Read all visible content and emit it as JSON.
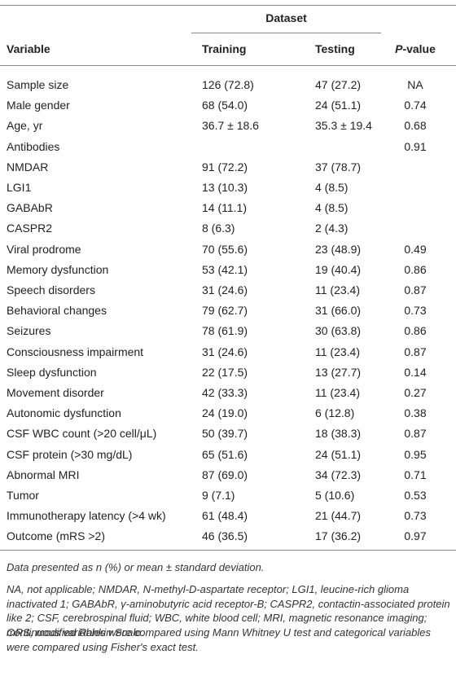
{
  "header": {
    "group": "Dataset",
    "columns": [
      "Variable",
      "Training",
      "Testing",
      "P-value"
    ]
  },
  "table": {
    "rows": [
      [
        "Sample size",
        "126 (72.8)",
        "47 (27.2)",
        "NA"
      ],
      [
        "Male gender",
        "68 (54.0)",
        "24 (51.1)",
        "0.74"
      ],
      [
        "Age, yr",
        "36.7 ± 18.6",
        "35.3 ± 19.4",
        "0.68"
      ],
      [
        "Antibodies",
        null,
        null,
        "0.91"
      ],
      [
        "NMDAR",
        "91 (72.2)",
        "37 (78.7)",
        null
      ],
      [
        "LGI1",
        "13 (10.3)",
        "4 (8.5)",
        null
      ],
      [
        "GABAbR",
        "14 (11.1)",
        "4 (8.5)",
        null
      ],
      [
        "CASPR2",
        "8 (6.3)",
        "2 (4.3)",
        null
      ],
      [
        "Viral prodrome",
        "70 (55.6)",
        "23 (48.9)",
        "0.49"
      ],
      [
        "Memory dysfunction",
        "53 (42.1)",
        "19 (40.4)",
        "0.86"
      ],
      [
        "Speech disorders",
        "31 (24.6)",
        "11 (23.4)",
        "0.87"
      ],
      [
        "Behavioral changes",
        "79 (62.7)",
        "31 (66.0)",
        "0.73"
      ],
      [
        "Seizures",
        "78 (61.9)",
        "30 (63.8)",
        "0.86"
      ],
      [
        "Consciousness impairment",
        "31 (24.6)",
        "11 (23.4)",
        "0.87"
      ],
      [
        "Sleep dysfunction",
        "22 (17.5)",
        "13 (27.7)",
        "0.14"
      ],
      [
        "Movement disorder",
        "42 (33.3)",
        "11 (23.4)",
        "0.27"
      ],
      [
        "Autonomic dysfunction",
        "24 (19.0)",
        "6 (12.8)",
        "0.38"
      ],
      [
        "CSF WBC count (>20 cell/μL)",
        "50 (39.7)",
        "18 (38.3)",
        "0.87"
      ],
      [
        "CSF protein (>30 mg/dL)",
        "65 (51.6)",
        "24 (51.1)",
        "0.95"
      ],
      [
        "Abnormal MRI",
        "87 (69.0)",
        "34 (72.3)",
        "0.71"
      ],
      [
        "Tumor",
        "9 (7.1)",
        "5 (10.6)",
        "0.53"
      ],
      [
        "Immunotherapy latency (>4 wk)",
        "61 (48.4)",
        "21 (44.7)",
        "0.73"
      ],
      [
        "Outcome (mRS >2)",
        "46 (36.5)",
        "17 (36.2)",
        "0.97"
      ]
    ]
  },
  "footnotes": [
    "Data presented as n (%) or mean ± standard deviation.",
    "NA, not applicable; NMDAR, N-methyl-D-aspartate receptor; LGI1, leucine-rich glioma inactivated 1; GABAbR, γ-aminobutyric acid receptor-B; CASPR2, contactin-associated protein like 2; CSF, cerebrospinal fluid; WBC, white blood cell; MRI, magnetic resonance imaging; mRS, modified Rankin Scale.",
    "Continuous variables were compared using Mann Whitney U test and categorical variables were compared using Fisher's exact test."
  ]
}
